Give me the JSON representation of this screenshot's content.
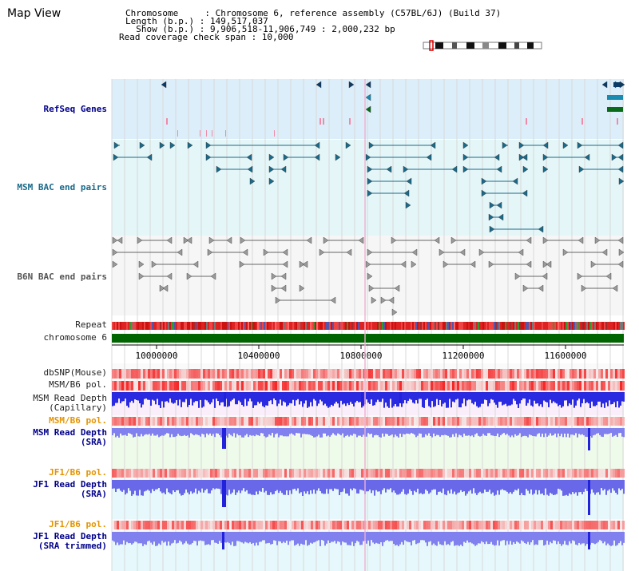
{
  "header": {
    "title": "Map View",
    "info_lines": [
      "Chromosome     : Chromosome 6, reference assembly (C57BL/6J) (Build 37)",
      "Length (b.p.) : 149,517,037",
      "  Show (b.p.) : 9,906,518-11,906,749 : 2,000,232 bp",
      "Read coverage check span : 10,000"
    ]
  },
  "tracks": {
    "refseq": "RefSeq Genes",
    "msm_bac": "MSM BAC end pairs",
    "b6n_bac": "B6N BAC end pairs",
    "repeat": "Repeat",
    "chromosome": "chromosome 6",
    "dbsnp": "dbSNP(Mouse)",
    "msm_b6_pol_1": "MSM/B6 pol.",
    "msm_read_depth_cap": "MSM Read Depth\n(Capillary)",
    "msm_b6_pol_2": "MSM/B6 pol.",
    "msm_read_depth_sra": "MSM Read Depth\n(SRA)",
    "jf1_b6_pol_1": "JF1/B6 pol.",
    "jf1_read_depth_sra": "JF1 Read Depth\n(SRA)",
    "jf1_b6_pol_2": "JF1/B6 pol.",
    "jf1_read_depth_trim": "JF1 Read Depth\n(SRA trimmed)"
  },
  "axis": {
    "ticks": [
      "10000000",
      "10400000",
      "10800000",
      "11200000",
      "11600000"
    ]
  },
  "colors": {
    "refseq_bg": "#dceefa",
    "msm_bg": "#e4f6f8",
    "b6n_bg": "#f4f4f4",
    "chromosome_bar": "#006400",
    "gene_dark": "#0b3a66",
    "gene_teal": "#1a8ab0",
    "gene_green": "#0a6a1a",
    "msm_feature": "#1a6a8a",
    "b6n_feature": "#666666",
    "depth_blue": "#2222dd",
    "depth_light": "#7777ee"
  }
}
